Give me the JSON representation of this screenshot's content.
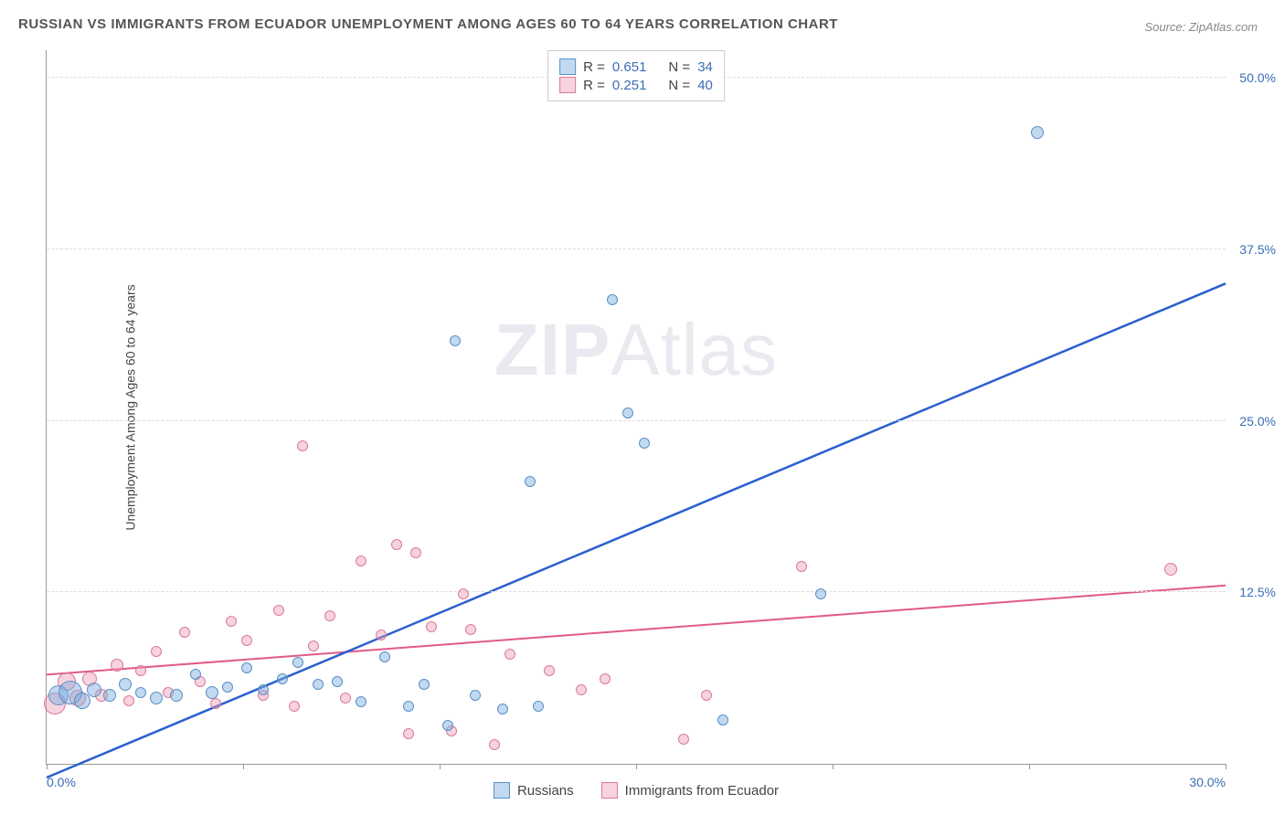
{
  "title": "RUSSIAN VS IMMIGRANTS FROM ECUADOR UNEMPLOYMENT AMONG AGES 60 TO 64 YEARS CORRELATION CHART",
  "source": "Source: ZipAtlas.com",
  "ylabel": "Unemployment Among Ages 60 to 64 years",
  "watermark_a": "ZIP",
  "watermark_b": "Atlas",
  "chart": {
    "type": "scatter",
    "xlim": [
      0,
      30
    ],
    "ylim": [
      0,
      52
    ],
    "xtick_positions": [
      0,
      5,
      10,
      15,
      20,
      25,
      30
    ],
    "xtick_labels_shown": {
      "0": "0.0%",
      "30": "30.0%"
    },
    "ytick_positions": [
      12.5,
      25.0,
      37.5,
      50.0
    ],
    "ytick_labels": [
      "12.5%",
      "25.0%",
      "37.5%",
      "50.0%"
    ],
    "background_color": "#ffffff",
    "grid_color": "#dddddd",
    "axis_color": "#999999",
    "watermark_color": "rgba(150,160,180,0.22)"
  },
  "series": {
    "russians": {
      "label": "Russians",
      "fill": "rgba(120,170,220,0.45)",
      "stroke": "#5a8fc7",
      "trend_color": "#2a5fd0",
      "trend_width": 2.5,
      "R": "0.651",
      "N": "34",
      "trend": {
        "x1": 0,
        "y1": -1.0,
        "x2": 30,
        "y2": 35.0
      },
      "points": [
        {
          "x": 0.3,
          "y": 5.0,
          "r": 11
        },
        {
          "x": 0.6,
          "y": 5.2,
          "r": 13
        },
        {
          "x": 0.9,
          "y": 4.6,
          "r": 9
        },
        {
          "x": 1.2,
          "y": 5.4,
          "r": 8
        },
        {
          "x": 1.6,
          "y": 5.0,
          "r": 7
        },
        {
          "x": 2.0,
          "y": 5.8,
          "r": 7
        },
        {
          "x": 2.4,
          "y": 5.2,
          "r": 6
        },
        {
          "x": 2.8,
          "y": 4.8,
          "r": 7
        },
        {
          "x": 3.3,
          "y": 5.0,
          "r": 7
        },
        {
          "x": 3.8,
          "y": 6.5,
          "r": 6
        },
        {
          "x": 4.2,
          "y": 5.2,
          "r": 7
        },
        {
          "x": 4.6,
          "y": 5.6,
          "r": 6
        },
        {
          "x": 5.1,
          "y": 7.0,
          "r": 6
        },
        {
          "x": 5.5,
          "y": 5.4,
          "r": 6
        },
        {
          "x": 6.0,
          "y": 6.2,
          "r": 6
        },
        {
          "x": 6.4,
          "y": 7.4,
          "r": 6
        },
        {
          "x": 6.9,
          "y": 5.8,
          "r": 6
        },
        {
          "x": 7.4,
          "y": 6.0,
          "r": 6
        },
        {
          "x": 8.0,
          "y": 4.5,
          "r": 6
        },
        {
          "x": 8.6,
          "y": 7.8,
          "r": 6
        },
        {
          "x": 9.2,
          "y": 4.2,
          "r": 6
        },
        {
          "x": 9.6,
          "y": 5.8,
          "r": 6
        },
        {
          "x": 10.2,
          "y": 2.8,
          "r": 6
        },
        {
          "x": 10.4,
          "y": 30.8,
          "r": 6
        },
        {
          "x": 10.9,
          "y": 5.0,
          "r": 6
        },
        {
          "x": 11.6,
          "y": 4.0,
          "r": 6
        },
        {
          "x": 12.3,
          "y": 20.6,
          "r": 6
        },
        {
          "x": 12.5,
          "y": 4.2,
          "r": 6
        },
        {
          "x": 14.4,
          "y": 33.8,
          "r": 6
        },
        {
          "x": 14.8,
          "y": 25.6,
          "r": 6
        },
        {
          "x": 15.2,
          "y": 23.4,
          "r": 6
        },
        {
          "x": 17.2,
          "y": 3.2,
          "r": 6
        },
        {
          "x": 19.7,
          "y": 12.4,
          "r": 6
        },
        {
          "x": 25.2,
          "y": 46.0,
          "r": 7
        }
      ]
    },
    "ecuador": {
      "label": "Immigrants from Ecuador",
      "fill": "rgba(235,150,175,0.42)",
      "stroke": "#d97a9a",
      "trend_color": "#e05a88",
      "trend_width": 2,
      "R": "0.251",
      "N": "40",
      "trend": {
        "x1": 0,
        "y1": 6.5,
        "x2": 30,
        "y2": 13.0
      },
      "points": [
        {
          "x": 0.2,
          "y": 4.4,
          "r": 12
        },
        {
          "x": 0.5,
          "y": 6.0,
          "r": 10
        },
        {
          "x": 0.8,
          "y": 4.8,
          "r": 9
        },
        {
          "x": 1.1,
          "y": 6.2,
          "r": 8
        },
        {
          "x": 1.4,
          "y": 5.0,
          "r": 7
        },
        {
          "x": 1.8,
          "y": 7.2,
          "r": 7
        },
        {
          "x": 2.1,
          "y": 4.6,
          "r": 6
        },
        {
          "x": 2.4,
          "y": 6.8,
          "r": 6
        },
        {
          "x": 2.8,
          "y": 8.2,
          "r": 6
        },
        {
          "x": 3.1,
          "y": 5.2,
          "r": 6
        },
        {
          "x": 3.5,
          "y": 9.6,
          "r": 6
        },
        {
          "x": 3.9,
          "y": 6.0,
          "r": 6
        },
        {
          "x": 4.3,
          "y": 4.4,
          "r": 6
        },
        {
          "x": 4.7,
          "y": 10.4,
          "r": 6
        },
        {
          "x": 5.1,
          "y": 9.0,
          "r": 6
        },
        {
          "x": 5.5,
          "y": 5.0,
          "r": 6
        },
        {
          "x": 5.9,
          "y": 11.2,
          "r": 6
        },
        {
          "x": 6.3,
          "y": 4.2,
          "r": 6
        },
        {
          "x": 6.5,
          "y": 23.2,
          "r": 6
        },
        {
          "x": 6.8,
          "y": 8.6,
          "r": 6
        },
        {
          "x": 7.2,
          "y": 10.8,
          "r": 6
        },
        {
          "x": 7.6,
          "y": 4.8,
          "r": 6
        },
        {
          "x": 8.0,
          "y": 14.8,
          "r": 6
        },
        {
          "x": 8.5,
          "y": 9.4,
          "r": 6
        },
        {
          "x": 8.9,
          "y": 16.0,
          "r": 6
        },
        {
          "x": 9.2,
          "y": 2.2,
          "r": 6
        },
        {
          "x": 9.4,
          "y": 15.4,
          "r": 6
        },
        {
          "x": 9.8,
          "y": 10.0,
          "r": 6
        },
        {
          "x": 10.6,
          "y": 12.4,
          "r": 6
        },
        {
          "x": 10.8,
          "y": 9.8,
          "r": 6
        },
        {
          "x": 10.3,
          "y": 2.4,
          "r": 6
        },
        {
          "x": 11.4,
          "y": 1.4,
          "r": 6
        },
        {
          "x": 11.8,
          "y": 8.0,
          "r": 6
        },
        {
          "x": 12.8,
          "y": 6.8,
          "r": 6
        },
        {
          "x": 13.6,
          "y": 5.4,
          "r": 6
        },
        {
          "x": 14.2,
          "y": 6.2,
          "r": 6
        },
        {
          "x": 16.2,
          "y": 1.8,
          "r": 6
        },
        {
          "x": 16.8,
          "y": 5.0,
          "r": 6
        },
        {
          "x": 19.2,
          "y": 14.4,
          "r": 6
        },
        {
          "x": 28.6,
          "y": 14.2,
          "r": 7
        }
      ]
    }
  },
  "legend_top": {
    "r_label": "R =",
    "n_label": "N ="
  }
}
